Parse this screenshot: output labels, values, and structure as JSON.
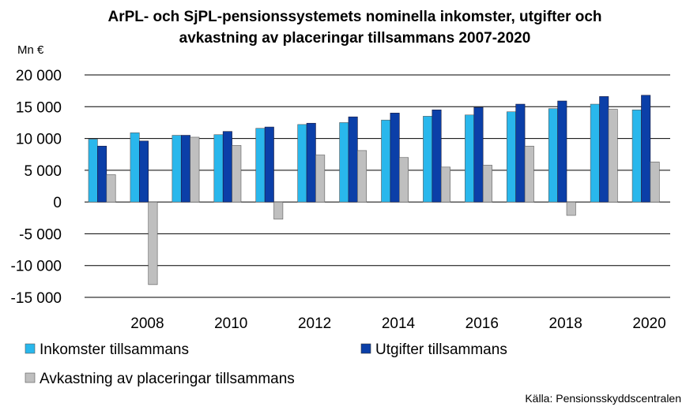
{
  "colors": {
    "inkomster": "#29B7EC",
    "utgifter": "#0B3FA8",
    "avkastning": "#BFBFBF",
    "grid": "#000000",
    "border": "#555555"
  },
  "chart_data": {
    "type": "bar",
    "title_lines": [
      "ArPL- och SjPL-pensionssystemets nominella inkomster,  utgifter och",
      "avkastning av placeringar tillsammans 2007-2020"
    ],
    "ylabel": "Mn €",
    "ylim": [
      -15000,
      20000
    ],
    "y_ticks": [
      20000,
      15000,
      10000,
      5000,
      0,
      -5000,
      -10000,
      -15000
    ],
    "y_tick_labels": [
      "20 000",
      "15 000",
      "10 000",
      "5 000",
      "0",
      "-5 000",
      "-10 000",
      "-15 000"
    ],
    "grid": true,
    "categories": [
      "2007",
      "2008",
      "2009",
      "2010",
      "2011",
      "2012",
      "2013",
      "2014",
      "2015",
      "2016",
      "2017",
      "2018",
      "2019",
      "2020"
    ],
    "x_tick_labels": [
      "2008",
      "2010",
      "2012",
      "2014",
      "2016",
      "2018",
      "2020"
    ],
    "series": [
      {
        "name": "Inkomster tillsammans",
        "color_key": "inkomster",
        "values": [
          9900,
          10900,
          10500,
          10600,
          11600,
          12200,
          12500,
          12900,
          13500,
          13700,
          14200,
          14700,
          15400,
          14500
        ]
      },
      {
        "name": "Utgifter tillsammans",
        "color_key": "utgifter",
        "values": [
          8800,
          9600,
          10500,
          11100,
          11800,
          12400,
          13400,
          14000,
          14500,
          14900,
          15400,
          15900,
          16600,
          16800
        ]
      },
      {
        "name": "Avkastning av placeringar tillsammans",
        "color_key": "avkastning",
        "values": [
          4300,
          -13000,
          10200,
          8900,
          -2700,
          7400,
          8100,
          7000,
          5500,
          5800,
          8800,
          -2100,
          14600,
          6300
        ]
      }
    ],
    "legend_position": "bottom",
    "source": "Källa: Pensionsskyddscentralen"
  }
}
